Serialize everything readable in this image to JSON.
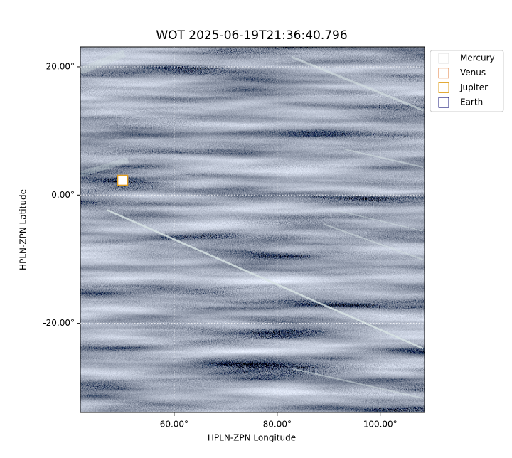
{
  "chart_data": {
    "type": "scatter",
    "title": "WOT 2025-06-19T21:36:40.796",
    "x_label": "HPLN-ZPN Longitude",
    "y_label": "HPLN-ZPN Latitude",
    "xlim": [
      41.8,
      108.6
    ],
    "ylim": [
      -33.9,
      23.1
    ],
    "xticks": [
      {
        "value": 60,
        "label": "60.00°"
      },
      {
        "value": 80,
        "label": "80.00°"
      },
      {
        "value": 100,
        "label": "100.00°"
      }
    ],
    "yticks": [
      {
        "value": -20,
        "label": "-20.00°"
      },
      {
        "value": 0,
        "label": "0.00°"
      },
      {
        "value": 20,
        "label": "20.00°"
      }
    ],
    "grid": true,
    "legend": "upper right outside",
    "series": [
      {
        "name": "Mercury",
        "color": "#dddddd",
        "x": [
          50.0
        ],
        "y": [
          2.3
        ]
      },
      {
        "name": "Venus",
        "color": "#e07b39",
        "x": [
          50.0
        ],
        "y": [
          2.3
        ]
      },
      {
        "name": "Jupiter",
        "color": "#e0a020",
        "x": [
          50.0
        ],
        "y": [
          2.3
        ]
      },
      {
        "name": "Earth",
        "color": "#1a1a7a",
        "x": [],
        "y": []
      }
    ]
  }
}
